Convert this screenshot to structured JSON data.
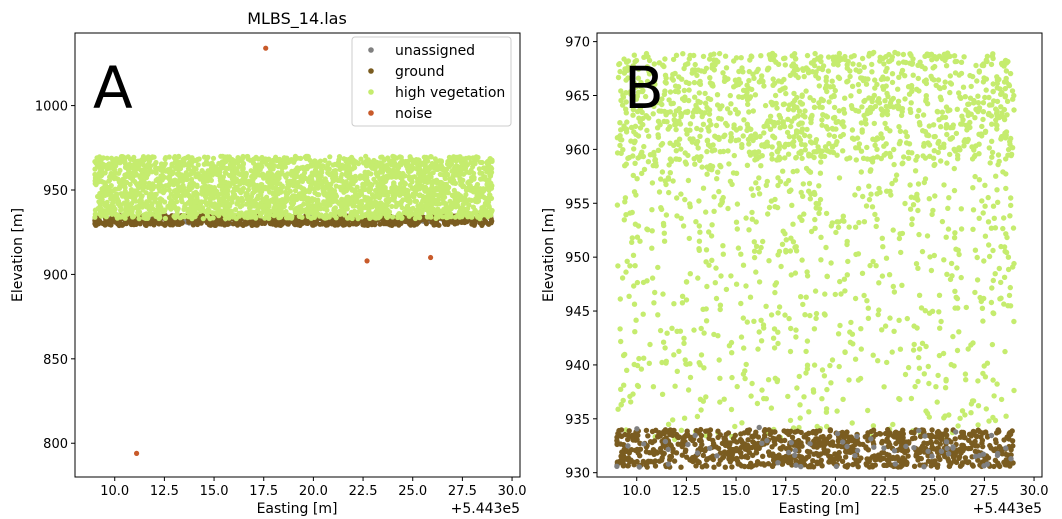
{
  "colors": {
    "unassigned": "#808080",
    "ground": "#7a5c20",
    "high_vegetation": "#c5ec6e",
    "noise": "#c85a2a",
    "axis": "#000000"
  },
  "chart_data": [
    {
      "type": "scatter",
      "panel_letter": "A",
      "title": "MLBS_14.las",
      "xlabel": "Easting [m]",
      "ylabel": "Elevation [m]",
      "x_offset_label": "+5.443e5",
      "xlim": [
        8.0,
        30.4
      ],
      "ylim": [
        780,
        1043
      ],
      "xticks": [
        10.0,
        12.5,
        15.0,
        17.5,
        20.0,
        22.5,
        25.0,
        27.5,
        30.0
      ],
      "xtick_labels": [
        "10.0",
        "12.5",
        "15.0",
        "17.5",
        "20.0",
        "22.5",
        "25.0",
        "27.5",
        "30.0"
      ],
      "yticks": [
        800,
        850,
        900,
        950,
        1000
      ],
      "ytick_labels": [
        "800",
        "850",
        "900",
        "950",
        "1000"
      ],
      "grid": false,
      "legend_position": "top-right",
      "series": [
        {
          "key": "unassigned",
          "name": "unassigned",
          "color": "#808080",
          "region": {
            "x": [
              9.0,
              29.0
            ],
            "y": [
              930,
              935
            ]
          },
          "density": 80
        },
        {
          "key": "ground",
          "name": "ground",
          "color": "#7a5c20",
          "region": {
            "x": [
              9.0,
              29.0
            ],
            "y": [
              929,
              935
            ]
          },
          "density": 700
        },
        {
          "key": "high_vegetation",
          "name": "high vegetation",
          "color": "#c5ec6e",
          "region": {
            "x": [
              9.0,
              29.0
            ],
            "y": [
              933,
              970
            ]
          },
          "density": 2600
        },
        {
          "key": "noise",
          "name": "noise",
          "color": "#c85a2a",
          "points": [
            [
              11.1,
              794
            ],
            [
              17.6,
              1034
            ],
            [
              22.7,
              908
            ],
            [
              25.9,
              910
            ]
          ]
        }
      ]
    },
    {
      "type": "scatter",
      "panel_letter": "B",
      "title": "",
      "xlabel": "Easting [m]",
      "ylabel": "Elevation [m]",
      "x_offset_label": "+5.443e5",
      "xlim": [
        8.0,
        30.4
      ],
      "ylim": [
        929.6,
        970.8
      ],
      "xticks": [
        10.0,
        12.5,
        15.0,
        17.5,
        20.0,
        22.5,
        25.0,
        27.5,
        30.0
      ],
      "xtick_labels": [
        "10.0",
        "12.5",
        "15.0",
        "17.5",
        "20.0",
        "22.5",
        "25.0",
        "27.5",
        "30.0"
      ],
      "yticks": [
        930,
        935,
        940,
        945,
        950,
        955,
        960,
        965,
        970
      ],
      "ytick_labels": [
        "930",
        "935",
        "940",
        "945",
        "950",
        "955",
        "960",
        "965",
        "970"
      ],
      "grid": false,
      "series": [
        {
          "key": "high_vegetation",
          "name": "high vegetation",
          "color": "#c5ec6e",
          "region": {
            "x": [
              9.0,
              29.0
            ],
            "y": [
              933,
              969
            ]
          },
          "density": 1900
        },
        {
          "key": "ground",
          "name": "ground",
          "color": "#7a5c20",
          "region": {
            "x": [
              9.0,
              29.0
            ],
            "y": [
              930.5,
              934
            ]
          },
          "density": 900
        },
        {
          "key": "unassigned",
          "name": "unassigned",
          "color": "#808080",
          "region": {
            "x": [
              9.0,
              29.0
            ],
            "y": [
              930.5,
              934.5
            ]
          },
          "density": 60
        }
      ]
    }
  ]
}
